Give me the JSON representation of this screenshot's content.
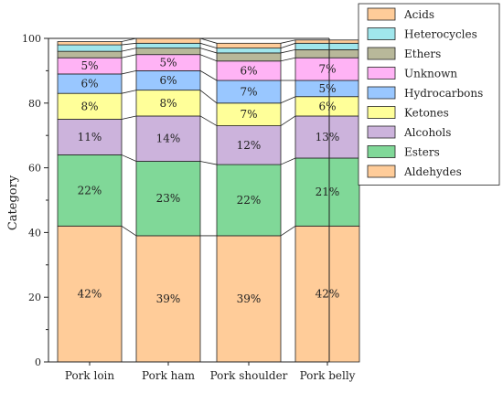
{
  "chart_data": {
    "type": "bar",
    "stacked": true,
    "normalized_percent": true,
    "ylabel": "Category",
    "xlabel": "",
    "title": "",
    "ylim": [
      0,
      100
    ],
    "yticks": [
      "0",
      "20",
      "40",
      "60",
      "80",
      "100"
    ],
    "legend_position": "top-right",
    "categories": [
      "Pork loin",
      "Pork ham",
      "Pork shoulder",
      "Pork belly"
    ],
    "series": [
      {
        "name": "Aldehydes",
        "color": "#FFCC99",
        "values": [
          42,
          39,
          39,
          42
        ],
        "labels": [
          "42%",
          "39%",
          "39%",
          "42%"
        ]
      },
      {
        "name": "Esters",
        "color": "#80D898",
        "values": [
          22,
          23,
          22,
          21
        ],
        "labels": [
          "22%",
          "23%",
          "22%",
          "21%"
        ]
      },
      {
        "name": "Alcohols",
        "color": "#CCB3DC",
        "values": [
          11,
          14,
          12,
          13
        ],
        "labels": [
          "11%",
          "14%",
          "12%",
          "13%"
        ]
      },
      {
        "name": "Ketones",
        "color": "#FFFF99",
        "values": [
          8,
          8,
          7,
          6
        ],
        "labels": [
          "8%",
          "8%",
          "7%",
          "6%"
        ]
      },
      {
        "name": "Hydrocarbons",
        "color": "#99C7FF",
        "values": [
          6,
          6,
          7,
          5
        ],
        "labels": [
          "6%",
          "6%",
          "7%",
          "5%"
        ]
      },
      {
        "name": "Unknown",
        "color": "#FFB3F5",
        "values": [
          5,
          5,
          6,
          7
        ],
        "labels": [
          "5%",
          "5%",
          "6%",
          "7%"
        ]
      },
      {
        "name": "Ethers",
        "color": "#B8B89A",
        "values": [
          2,
          2,
          2.5,
          2.5
        ],
        "labels": [
          "",
          "",
          "",
          ""
        ]
      },
      {
        "name": "Heterocycles",
        "color": "#A0E6EC",
        "values": [
          2,
          1.5,
          1.5,
          2
        ],
        "labels": [
          "",
          "",
          "",
          ""
        ]
      },
      {
        "name": "Acids",
        "color": "#FFCC99",
        "values": [
          1,
          1.5,
          1.5,
          1
        ],
        "labels": [
          "",
          "",
          "",
          ""
        ]
      }
    ],
    "legend_order": [
      "Acids",
      "Heterocycles",
      "Ethers",
      "Unknown",
      "Hydrocarbons",
      "Ketones",
      "Alcohols",
      "Esters",
      "Aldehydes"
    ]
  }
}
